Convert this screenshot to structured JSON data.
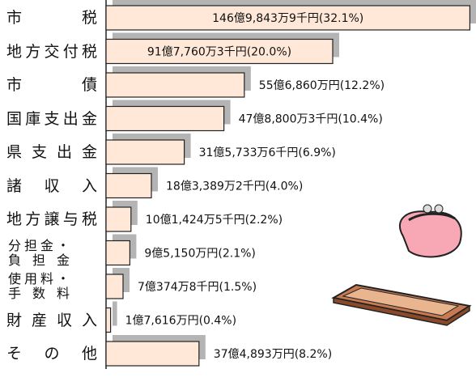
{
  "chart_data": {
    "type": "bar",
    "orientation": "horizontal",
    "categories": [
      "市税",
      "地方交付税",
      "市債",
      "国庫支出金",
      "県支出金",
      "諸収入",
      "地方譲与税",
      "分担金・負担金",
      "使用料・手数料",
      "財産収入",
      "その他"
    ],
    "values": [
      32.1,
      20.0,
      12.2,
      10.4,
      6.9,
      4.0,
      2.2,
      2.1,
      1.5,
      0.4,
      8.2
    ],
    "value_labels": [
      "146億9,843万9千円(32.1%)",
      "91億7,760万3千円(20.0%)",
      "55億6,860万円(12.2%)",
      "47億8,800万3千円(10.4%)",
      "31億5,733万6千円(6.9%)",
      "18億3,389万2千円(4.0%)",
      "10億1,424万5千円(2.2%)",
      "9億5,150万円(2.1%)",
      "7億374万8千円(1.5%)",
      "1億7,616万円(0.4%)",
      "37億4,893万円(8.2%)"
    ],
    "color": "#ffe8d8",
    "shadow_color": "#b4b4b4"
  }
}
